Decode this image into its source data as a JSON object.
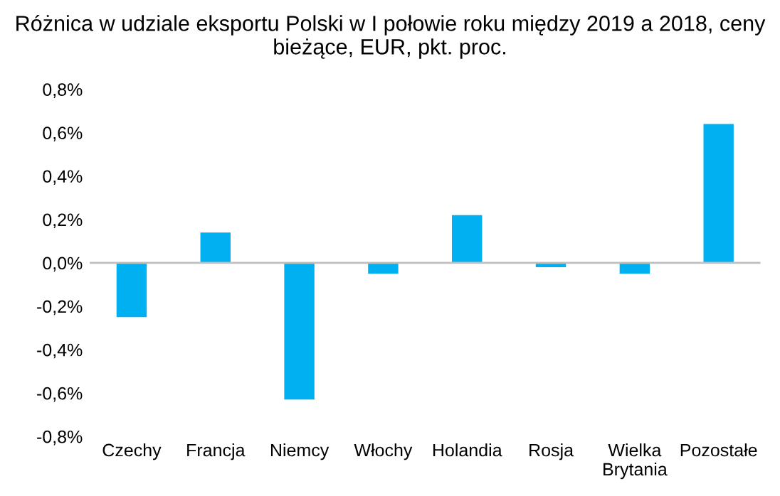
{
  "chart_data": {
    "type": "bar",
    "title": "Różnica w udziale eksportu Polski w I połowie roku między 2019 a 2018, ceny bieżące, EUR, pkt. proc.",
    "categories": [
      "Czechy",
      "Francja",
      "Niemcy",
      "Włochy",
      "Holandia",
      "Rosja",
      "Wielka Brytania",
      "Pozostałe"
    ],
    "values": [
      -0.25,
      0.14,
      -0.63,
      -0.05,
      0.22,
      -0.02,
      -0.05,
      0.64
    ],
    "color": "#00b0f0",
    "ylim": [
      -0.8,
      0.8
    ],
    "yticks": [
      {
        "value": -0.8,
        "label": "-0,8%"
      },
      {
        "value": -0.6,
        "label": "-0,6%"
      },
      {
        "value": -0.4,
        "label": "-0,4%"
      },
      {
        "value": -0.2,
        "label": "-0,2%"
      },
      {
        "value": 0,
        "label": "0,0%"
      },
      {
        "value": 0.2,
        "label": "0,2%"
      },
      {
        "value": 0.4,
        "label": "0,4%"
      },
      {
        "value": 0.6,
        "label": "0,6%"
      },
      {
        "value": 0.8,
        "label": "0,8%"
      }
    ],
    "ref_lines": [
      {
        "axis": "y",
        "value": 0,
        "color": "#bfbfbf"
      }
    ],
    "grid": false,
    "legend": false
  }
}
